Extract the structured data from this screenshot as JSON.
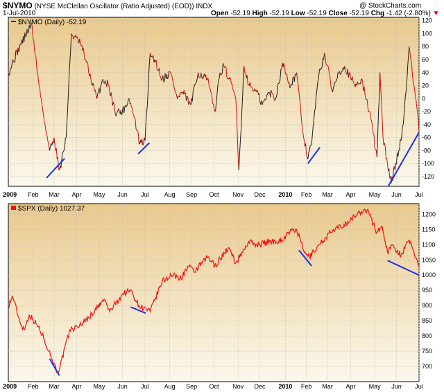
{
  "header": {
    "symbol": "$NYMO",
    "description": "(NYSE McClellan Oscillator (Ratio Adjusted) (EOD))",
    "index_tag": "INDX",
    "date": "1-Jul-2010",
    "copyright": "@ StockCharts.com",
    "open_label": "Open",
    "open_value": "-52.19",
    "high_label": "High",
    "high_value": "-52.19",
    "low_label": "Low",
    "low_value": "-52.19",
    "close_label": "Close",
    "close_value": "-52.19",
    "chg_label": "Chg",
    "chg_value": "-1.42 (-2.80%)",
    "chg_arrow": "▼"
  },
  "colors": {
    "panel_top": "#e9c98d",
    "panel_bottom": "#fbf8ec",
    "nymo_up": "#1a1a1a",
    "nymo_down": "#cc1111",
    "spx": "#ee1111",
    "trendline": "#1a2fe6",
    "grid": "#bdbdbd"
  },
  "chart_data": [
    {
      "type": "line",
      "legend": "$NYMO (Daily) -52.19",
      "last_value": -52.19,
      "ylim": [
        -135,
        125
      ],
      "yticks": [
        -120,
        -100,
        -80,
        -60,
        -40,
        -20,
        0,
        20,
        40,
        60,
        80,
        100,
        120
      ],
      "x_tick_labels": [
        "2009",
        "Feb",
        "Mar",
        "Apr",
        "May",
        "Jun",
        "Jul",
        "Aug",
        "Sep",
        "Oct",
        "Nov",
        "Dec",
        "2010",
        "Feb",
        "Mar",
        "Apr",
        "May",
        "Jun",
        "Jul"
      ],
      "x_tick_bold": [
        "2009",
        "2010"
      ],
      "x": [
        "2008-12-31",
        "2009-01-15",
        "2009-01-31",
        "2009-02-10",
        "2009-02-18",
        "2009-02-24",
        "2009-03-02",
        "2009-03-09",
        "2009-03-12",
        "2009-03-18",
        "2009-03-25",
        "2009-04-06",
        "2009-04-13",
        "2009-04-20",
        "2009-04-28",
        "2009-05-06",
        "2009-05-14",
        "2009-05-22",
        "2009-06-01",
        "2009-06-10",
        "2009-06-17",
        "2009-06-24",
        "2009-07-01",
        "2009-07-08",
        "2009-07-14",
        "2009-07-24",
        "2009-08-04",
        "2009-08-13",
        "2009-08-20",
        "2009-08-31",
        "2009-09-10",
        "2009-09-22",
        "2009-10-02",
        "2009-10-09",
        "2009-10-14",
        "2009-10-21",
        "2009-10-30",
        "2009-11-03",
        "2009-11-10",
        "2009-11-17",
        "2009-11-27",
        "2009-12-04",
        "2009-12-14",
        "2009-12-22",
        "2009-12-31",
        "2010-01-11",
        "2010-01-19",
        "2010-01-26",
        "2010-02-02",
        "2010-02-08",
        "2010-02-16",
        "2010-02-25",
        "2010-03-08",
        "2010-03-15",
        "2010-03-24",
        "2010-04-06",
        "2010-04-15",
        "2010-04-26",
        "2010-05-06",
        "2010-05-10",
        "2010-05-14",
        "2010-05-20",
        "2010-05-25",
        "2010-06-04",
        "2010-06-10",
        "2010-06-18",
        "2010-06-22",
        "2010-06-29",
        "2010-07-01"
      ],
      "values": [
        40,
        80,
        115,
        20,
        -40,
        -80,
        -60,
        -110,
        -95,
        -60,
        100,
        85,
        60,
        30,
        0,
        30,
        20,
        -20,
        -20,
        0,
        -30,
        -70,
        -65,
        70,
        60,
        30,
        40,
        0,
        10,
        -10,
        40,
        30,
        -20,
        40,
        50,
        30,
        0,
        -110,
        50,
        20,
        10,
        -10,
        10,
        0,
        55,
        20,
        40,
        -40,
        -90,
        -70,
        25,
        70,
        10,
        40,
        50,
        20,
        30,
        -20,
        -90,
        40,
        -60,
        -100,
        -130,
        -80,
        -40,
        80,
        40,
        -20,
        -52
      ]
    },
    {
      "type": "line",
      "legend": "$SPX (Daily) 1027.37",
      "last_value": 1027.37,
      "ylim": [
        650,
        1235
      ],
      "yticks": [
        700,
        750,
        800,
        850,
        900,
        950,
        1000,
        1050,
        1100,
        1150,
        1200
      ],
      "x_tick_labels": [
        "2009",
        "Feb",
        "Mar",
        "Apr",
        "May",
        "Jun",
        "Jul",
        "Aug",
        "Sep",
        "Oct",
        "Nov",
        "Dec",
        "2010",
        "Feb",
        "Mar",
        "Apr",
        "May",
        "Jun",
        "Jul"
      ],
      "x_tick_bold": [
        "2009",
        "2010"
      ],
      "x": [
        "2008-12-31",
        "2009-01-06",
        "2009-01-15",
        "2009-01-21",
        "2009-01-28",
        "2009-02-09",
        "2009-02-17",
        "2009-02-23",
        "2009-03-02",
        "2009-03-06",
        "2009-03-10",
        "2009-03-23",
        "2009-04-02",
        "2009-04-17",
        "2009-05-08",
        "2009-05-15",
        "2009-06-02",
        "2009-06-12",
        "2009-06-23",
        "2009-07-08",
        "2009-07-24",
        "2009-08-05",
        "2009-08-18",
        "2009-08-28",
        "2009-09-04",
        "2009-09-23",
        "2009-10-02",
        "2009-10-20",
        "2009-10-30",
        "2009-11-16",
        "2009-11-27",
        "2009-12-14",
        "2009-12-31",
        "2010-01-08",
        "2010-01-19",
        "2010-01-29",
        "2010-02-05",
        "2010-02-18",
        "2010-03-05",
        "2010-03-26",
        "2010-04-15",
        "2010-04-23",
        "2010-05-06",
        "2010-05-13",
        "2010-05-20",
        "2010-05-27",
        "2010-06-07",
        "2010-06-18",
        "2010-06-22",
        "2010-06-29",
        "2010-07-01"
      ],
      "values": [
        900,
        930,
        850,
        820,
        870,
        830,
        790,
        750,
        710,
        680,
        700,
        820,
        830,
        860,
        920,
        880,
        940,
        950,
        900,
        880,
        980,
        1000,
        990,
        1030,
        1010,
        1060,
        1030,
        1090,
        1040,
        1110,
        1100,
        1110,
        1115,
        1140,
        1150,
        1075,
        1060,
        1100,
        1140,
        1170,
        1210,
        1215,
        1140,
        1160,
        1075,
        1100,
        1065,
        1115,
        1090,
        1045,
        1027.37
      ]
    }
  ],
  "trendlines": [
    {
      "panel": 0,
      "from": [
        "2009-02-20",
        -122
      ],
      "to": [
        "2009-03-16",
        -92
      ]
    },
    {
      "panel": 0,
      "from": [
        "2009-06-22",
        -85
      ],
      "to": [
        "2009-07-07",
        -68
      ]
    },
    {
      "panel": 0,
      "from": [
        "2010-02-03",
        -100
      ],
      "to": [
        "2010-02-19",
        -75
      ]
    },
    {
      "panel": 0,
      "from": [
        "2010-05-21",
        -135
      ],
      "to": [
        "2010-07-01",
        -52
      ]
    },
    {
      "panel": 1,
      "from": [
        "2009-02-24",
        725
      ],
      "to": [
        "2009-03-09",
        670
      ]
    },
    {
      "panel": 1,
      "from": [
        "2009-06-12",
        895
      ],
      "to": [
        "2009-07-02",
        875
      ]
    },
    {
      "panel": 1,
      "from": [
        "2010-01-22",
        1082
      ],
      "to": [
        "2010-02-08",
        1030
      ]
    },
    {
      "panel": 1,
      "from": [
        "2010-05-20",
        1048
      ],
      "to": [
        "2010-07-01",
        1000
      ]
    }
  ]
}
